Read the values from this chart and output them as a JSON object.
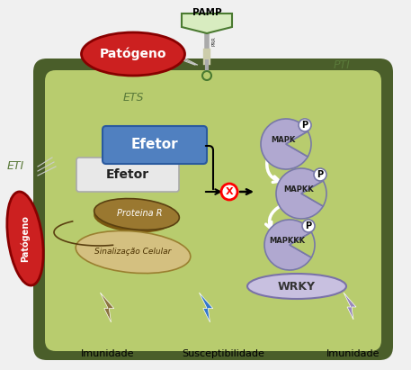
{
  "bg_color": "#f0f0f0",
  "cell_outer_color": "#4a5e2a",
  "cell_inner_color": "#b8cc6e",
  "pamp_box_color": "#d8ecc0",
  "pamp_box_edge": "#4a7a30",
  "pamp_text": "PAMP",
  "pti_text": "PTI",
  "ets_text": "ETS",
  "eti_text": "ETI",
  "efetor_blue_color": "#5080c0",
  "efetor_blue_edge": "#2a5a9f",
  "efetor_white_color": "#e8e8e8",
  "efetor_white_edge": "#aaaaaa",
  "proteina_r_color": "#9a7830",
  "proteina_r_dark": "#7a5810",
  "sinalizacao_color": "#d4c080",
  "mapk_color": "#b0a8d0",
  "mapk_edge": "#7878a8",
  "wrky_color": "#c8c0e0",
  "wrky_edge": "#7a72a8",
  "pathogen_red_color": "#cc2020",
  "pathogen_red_edge": "#880000",
  "lightning_brown": "#8B7340",
  "lightning_blue": "#3377cc",
  "lightning_purple": "#9988bb",
  "label_imunidade1": "Imunidade",
  "label_susceptibilidade": "Susceptibilidade",
  "label_imunidade2": "Imunidade",
  "receptor_line_color": "#888888",
  "arrow_color": "#000000"
}
